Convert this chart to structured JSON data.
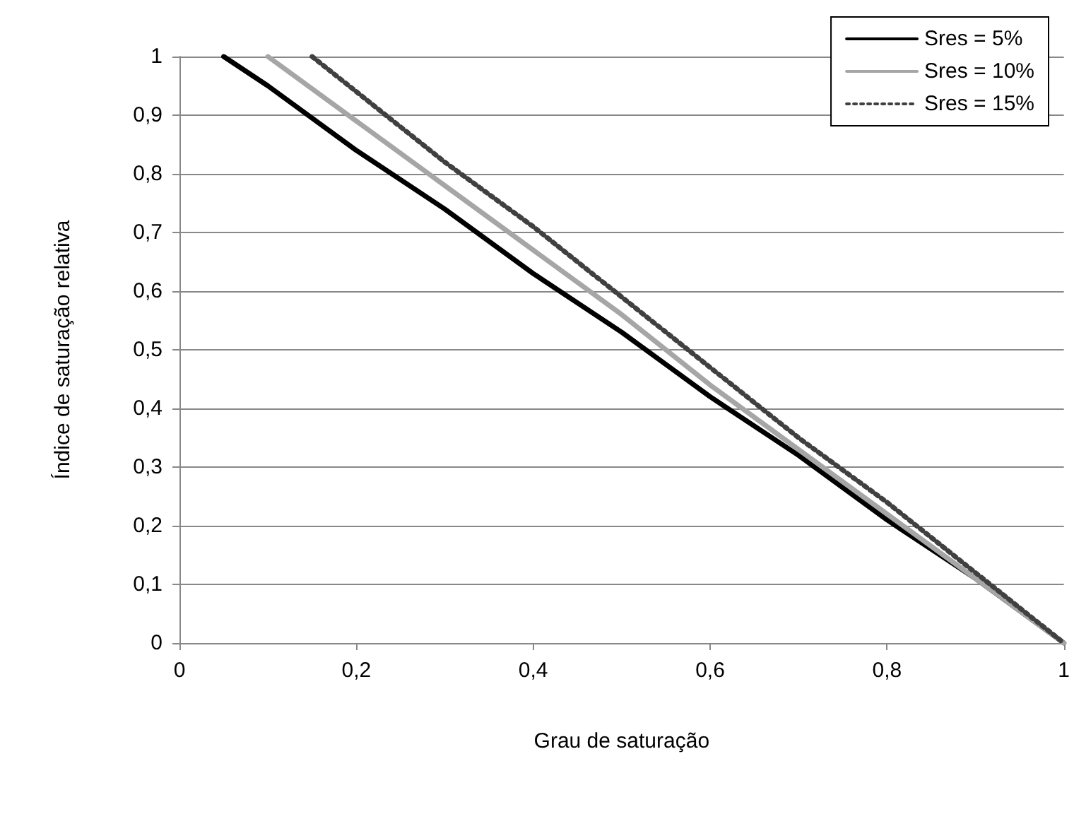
{
  "chart_data": {
    "type": "line",
    "xlabel": "Grau de saturação",
    "ylabel": "Índice de saturação relativa",
    "xlim": [
      0,
      1
    ],
    "ylim": [
      0,
      1
    ],
    "xticks": [
      "0",
      {
        "value": 0.2,
        "label": "0,2"
      },
      {
        "value": 0.4,
        "label": "0,4"
      },
      {
        "value": 0.6,
        "label": "0,6"
      },
      {
        "value": 0.8,
        "label": "0,8"
      },
      1
    ],
    "yticks": [
      0,
      {
        "value": 0.1,
        "label": "0,1"
      },
      {
        "value": 0.2,
        "label": "0,2"
      },
      {
        "value": 0.3,
        "label": "0,3"
      },
      {
        "value": 0.4,
        "label": "0,4"
      },
      {
        "value": 0.5,
        "label": "0,5"
      },
      {
        "value": 0.6,
        "label": "0,6"
      },
      {
        "value": 0.7,
        "label": "0,7"
      },
      {
        "value": 0.8,
        "label": "0,8"
      },
      {
        "value": 0.9,
        "label": "0,9"
      },
      1
    ],
    "grid": "y",
    "legend": "top right",
    "marker": "none",
    "series": [
      {
        "name": "Sres = 5%",
        "color": "#000000",
        "line_style": "solid",
        "x": [
          0.05,
          0.1,
          0.2,
          0.3,
          0.4,
          0.5,
          0.6,
          0.7,
          0.8,
          0.9,
          1
        ],
        "values": [
          1,
          0.95,
          0.84,
          0.74,
          0.63,
          0.53,
          0.42,
          0.32,
          0.21,
          0.11,
          0
        ]
      },
      {
        "name": "Sres = 10%",
        "color": "#a6a6a6",
        "line_style": "solid",
        "x": [
          0.1,
          0.2,
          0.3,
          0.4,
          0.5,
          0.6,
          0.7,
          0.8,
          0.9,
          1
        ],
        "values": [
          1,
          0.89,
          0.78,
          0.67,
          0.56,
          0.44,
          0.33,
          0.22,
          0.11,
          0
        ]
      },
      {
        "name": "Sres = 15%",
        "color": "#404040",
        "line_style": "dotted",
        "x": [
          0.15,
          0.2,
          0.3,
          0.4,
          0.5,
          0.6,
          0.7,
          0.8,
          0.9,
          1
        ],
        "values": [
          1,
          0.94,
          0.82,
          0.71,
          0.59,
          0.47,
          0.35,
          0.24,
          0.12,
          0
        ]
      }
    ]
  }
}
